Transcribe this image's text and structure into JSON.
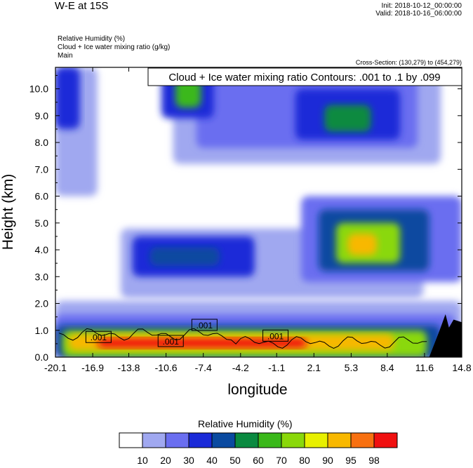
{
  "header": {
    "title": "W-E at 15S",
    "init": "Init: 2018-10-12_00:00:00",
    "valid": "Valid: 2018-10-16_06:00:00",
    "var1": "Relative Humidity   (%)",
    "var2": "Cloud + Ice water mixing ratio   (g/kg)",
    "var3": "Main",
    "cross_section": "Cross-Section: (130,279) to (454,279)"
  },
  "chart_data": {
    "type": "heatmap",
    "title": "Cloud + Ice water mixing ratio Contours: .001 to .1 by .099",
    "xlabel": "longitude",
    "ylabel": "Height (km)",
    "xlim": [
      -20.1,
      14.8
    ],
    "ylim": [
      0.0,
      10.8
    ],
    "x_ticks": [
      "-20.1",
      "-16.9",
      "-13.8",
      "-10.6",
      "-7.4",
      "-4.2",
      "-1.1",
      "2.1",
      "5.3",
      "8.4",
      "11.6",
      "14.8"
    ],
    "y_ticks": [
      "0.0",
      "1.0",
      "2.0",
      "3.0",
      "4.0",
      "5.0",
      "6.0",
      "7.0",
      "8.0",
      "9.0",
      "10.0"
    ],
    "contour_labels": [
      {
        "text": ".001",
        "x": -16.4,
        "y": 0.7
      },
      {
        "text": ".001",
        "x": -7.3,
        "y": 1.15
      },
      {
        "text": ".001",
        "x": -10.2,
        "y": 0.55
      },
      {
        "text": ".001",
        "x": -1.2,
        "y": 0.75
      }
    ],
    "colorbar": {
      "title": "Relative Humidity  (%)",
      "levels": [
        "10",
        "20",
        "30",
        "40",
        "50",
        "60",
        "70",
        "80",
        "90",
        "95",
        "98"
      ],
      "colors": [
        "#ffffff",
        "#a0a8f0",
        "#6a6ef0",
        "#1a2ad8",
        "#0a4aa0",
        "#0a8a40",
        "#3ab81a",
        "#8ad80a",
        "#e8f000",
        "#f8b800",
        "#f87010",
        "#f01010"
      ]
    },
    "fields": [
      {
        "level": 1,
        "x": [
          -20.1,
          14.8
        ],
        "y": [
          0.0,
          2.1
        ]
      },
      {
        "level": 2,
        "x": [
          -20.1,
          14.2
        ],
        "y": [
          0.0,
          1.6
        ]
      },
      {
        "level": 4,
        "x": [
          -20.1,
          13.0
        ],
        "y": [
          0.0,
          1.2
        ]
      },
      {
        "level": 7,
        "x": [
          -19.5,
          11.8
        ],
        "y": [
          0.0,
          1.0
        ]
      },
      {
        "level": 9,
        "x": [
          -19.0,
          9.0
        ],
        "y": [
          0.25,
          0.85
        ]
      },
      {
        "level": 11,
        "x": [
          -16.5,
          1.5
        ],
        "y": [
          0.35,
          0.7
        ]
      },
      {
        "level": 1,
        "x": [
          -20.1,
          -16.5
        ],
        "y": [
          6.0,
          10.8
        ]
      },
      {
        "level": 3,
        "x": [
          -20.1,
          -18.0
        ],
        "y": [
          8.5,
          10.8
        ]
      },
      {
        "level": 1,
        "x": [
          -14.5,
          11.5
        ],
        "y": [
          2.2,
          4.8
        ]
      },
      {
        "level": 3,
        "x": [
          -13.5,
          -3.0
        ],
        "y": [
          3.0,
          4.5
        ]
      },
      {
        "level": 4,
        "x": [
          -12.0,
          -6.0
        ],
        "y": [
          3.4,
          4.1
        ]
      },
      {
        "level": 2,
        "x": [
          1.0,
          14.8
        ],
        "y": [
          2.8,
          6.0
        ]
      },
      {
        "level": 4,
        "x": [
          2.5,
          12.0
        ],
        "y": [
          3.2,
          5.5
        ]
      },
      {
        "level": 7,
        "x": [
          4.0,
          9.5
        ],
        "y": [
          3.5,
          5.0
        ]
      },
      {
        "level": 9,
        "x": [
          5.0,
          7.5
        ],
        "y": [
          3.8,
          4.6
        ]
      },
      {
        "level": 1,
        "x": [
          -10.0,
          13.0
        ],
        "y": [
          7.2,
          10.8
        ]
      },
      {
        "level": 2,
        "x": [
          -8.0,
          11.0
        ],
        "y": [
          7.8,
          10.6
        ]
      },
      {
        "level": 3,
        "x": [
          0.5,
          9.5
        ],
        "y": [
          8.1,
          10.0
        ]
      },
      {
        "level": 5,
        "x": [
          3.0,
          7.0
        ],
        "y": [
          8.4,
          9.4
        ]
      },
      {
        "level": 3,
        "x": [
          -11.0,
          -6.5
        ],
        "y": [
          8.9,
          10.8
        ]
      },
      {
        "level": 6,
        "x": [
          -9.8,
          -7.6
        ],
        "y": [
          9.3,
          10.4
        ]
      }
    ],
    "terrain": [
      [
        12.0,
        0.0
      ],
      [
        12.9,
        1.0
      ],
      [
        13.4,
        1.6
      ],
      [
        13.7,
        1.1
      ],
      [
        14.1,
        1.4
      ],
      [
        14.8,
        1.3
      ],
      [
        14.8,
        0.0
      ]
    ]
  }
}
